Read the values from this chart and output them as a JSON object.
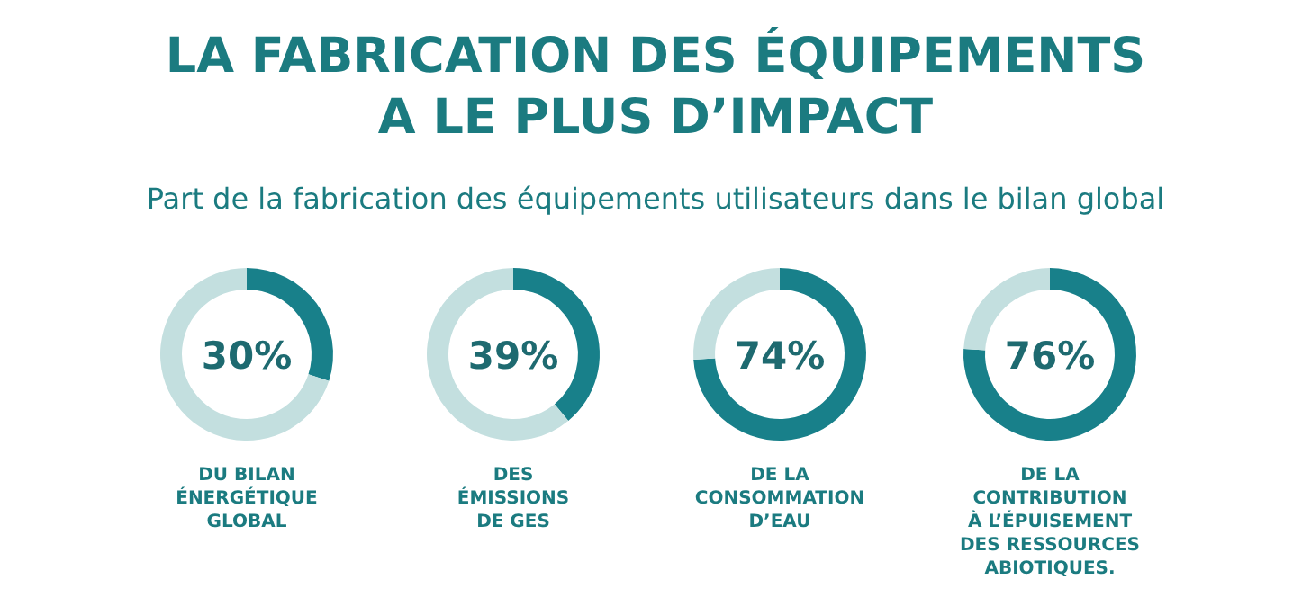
{
  "chart_data": [
    {
      "type": "donut",
      "title": "LA FABRICATION DES ÉQUIPEMENTS\nA LE PLUS D’IMPACT",
      "subtitle": "Part de la fabrication des équipements utilisateurs dans le bilan global",
      "categories": [
        null,
        null
      ],
      "values": [
        30,
        70
      ],
      "colors": [
        "#18808a",
        "#c3dfdf"
      ],
      "annotations": [
        "30%",
        "DU BILAN\nÉNERGÉTIQUE\nGLOBAL"
      ]
    },
    {
      "type": "donut",
      "categories": [
        null,
        null
      ],
      "values": [
        39,
        61
      ],
      "colors": [
        "#18808a",
        "#c3dfdf"
      ],
      "annotations": [
        "39%",
        "DES\nÉMISSIONS\nDE GES"
      ]
    },
    {
      "type": "donut",
      "categories": [
        null,
        null
      ],
      "values": [
        74,
        26
      ],
      "colors": [
        "#18808a",
        "#c3dfdf"
      ],
      "annotations": [
        "74%",
        "DE LA\nCONSOMMATION\nD’EAU"
      ]
    },
    {
      "type": "donut",
      "categories": [
        null,
        null
      ],
      "values": [
        76,
        24
      ],
      "colors": [
        "#18808a",
        "#c3dfdf"
      ],
      "annotations": [
        "76%",
        "DE LA\nCONTRIBUTION\nÀ L’ÉPUISEMENT\nDES RESSOURCES\nABIOTIQUES."
      ]
    }
  ]
}
